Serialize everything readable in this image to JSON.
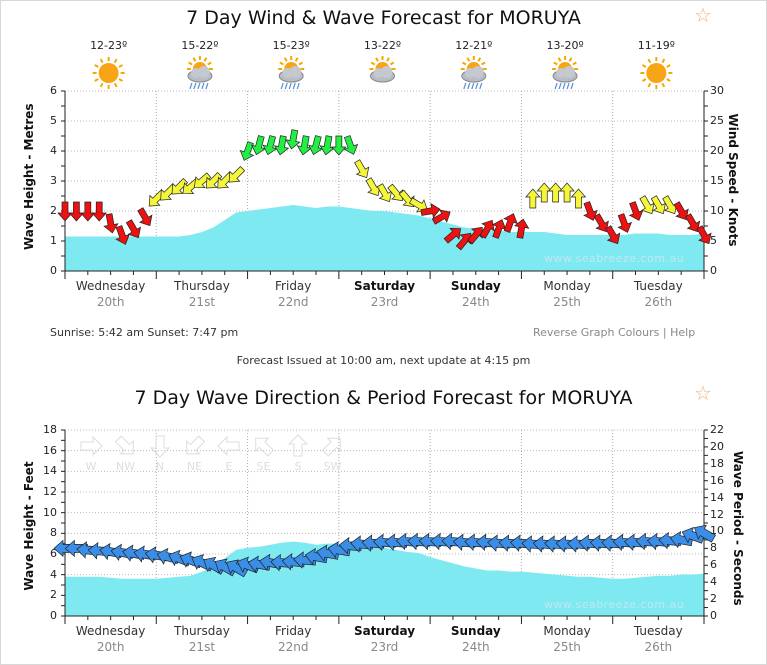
{
  "wind_chart": {
    "title": "7 Day Wind & Wave Forecast for MORUYA",
    "favourite_icon": "star-outline-icon",
    "weather": [
      {
        "temp": "12-23º",
        "icon": "sunny-icon"
      },
      {
        "temp": "15-22º",
        "icon": "storm-icon"
      },
      {
        "temp": "15-23º",
        "icon": "storm-icon"
      },
      {
        "temp": "13-22º",
        "icon": "partly-cloudy-icon"
      },
      {
        "temp": "12-21º",
        "icon": "storm-icon"
      },
      {
        "temp": "13-20º",
        "icon": "storm-icon"
      },
      {
        "temp": "11-19º",
        "icon": "sunny-icon"
      }
    ],
    "sunrise_sunset": "Sunrise: 5:42 am  Sunset: 7:47 pm",
    "reverse_link": "Reverse Graph Colours",
    "separator": "|",
    "help_link": "Help",
    "issued": "Forecast Issued at 10:00 am, next update at 4:15 pm",
    "watermark": "www.seabreeze.com.au"
  },
  "wave_chart": {
    "title": "7 Day Wave Direction & Period Forecast for MORUYA",
    "favourite_icon": "star-outline-icon",
    "watermark": "www.seabreeze.com.au",
    "compass": [
      "W",
      "NW",
      "N",
      "NE",
      "E",
      "SE",
      "S",
      "SW"
    ]
  },
  "days": [
    {
      "day": "Wednesday",
      "date": "20th",
      "bold": false
    },
    {
      "day": "Thursday",
      "date": "21st",
      "bold": false
    },
    {
      "day": "Friday",
      "date": "22nd",
      "bold": false
    },
    {
      "day": "Saturday",
      "date": "23rd",
      "bold": true
    },
    {
      "day": "Sunday",
      "date": "24th",
      "bold": true
    },
    {
      "day": "Monday",
      "date": "25th",
      "bold": false
    },
    {
      "day": "Tuesday",
      "date": "26th",
      "bold": false
    }
  ],
  "chart_data": [
    {
      "type": "area",
      "title": "7 Day Wind & Wave Forecast for MORUYA",
      "ylabel": "Wave Height - Metres",
      "y2label": "Wind Speed - Knots",
      "ylim": [
        0,
        6
      ],
      "y2lim": [
        0,
        30
      ],
      "yticks": [
        "0",
        "1",
        "2",
        "3",
        "4",
        "5",
        "6"
      ],
      "y2ticks": [
        "0",
        "5",
        "10",
        "15",
        "20",
        "25",
        "30"
      ],
      "grid": true,
      "interval_hours": 3,
      "wave_height_m": [
        1.15,
        1.15,
        1.15,
        1.15,
        1.15,
        1.15,
        1.15,
        1.15,
        1.15,
        1.15,
        1.15,
        1.2,
        1.3,
        1.45,
        1.7,
        1.95,
        2.0,
        2.05,
        2.1,
        2.15,
        2.2,
        2.15,
        2.1,
        2.15,
        2.15,
        2.1,
        2.05,
        2.0,
        2.0,
        1.95,
        1.9,
        1.85,
        1.75,
        1.65,
        1.55,
        1.45,
        1.4,
        1.35,
        1.35,
        1.3,
        1.3,
        1.3,
        1.3,
        1.25,
        1.2,
        1.2,
        1.2,
        1.2,
        1.2,
        1.2,
        1.25,
        1.25,
        1.25,
        1.2,
        1.2,
        1.2,
        1.25
      ],
      "wind_speed_kn": [
        10,
        10,
        10,
        10,
        8,
        6,
        7,
        9,
        12,
        13,
        14,
        14,
        15,
        15,
        15,
        16,
        20,
        21,
        21,
        21,
        22,
        21,
        21,
        21,
        21,
        21,
        17,
        14,
        13,
        13,
        12,
        11,
        10,
        9,
        6,
        5,
        6,
        7,
        7,
        8,
        7,
        12,
        13,
        13,
        13,
        12,
        10,
        8,
        6,
        8,
        10,
        11,
        11,
        11,
        10,
        8,
        6
      ],
      "wind_dir_from_deg": [
        0,
        0,
        0,
        0,
        350,
        340,
        330,
        330,
        45,
        45,
        45,
        50,
        50,
        45,
        45,
        45,
        20,
        15,
        15,
        10,
        10,
        10,
        15,
        10,
        0,
        340,
        330,
        330,
        330,
        320,
        320,
        300,
        260,
        240,
        230,
        220,
        220,
        210,
        200,
        200,
        190,
        180,
        180,
        180,
        180,
        180,
        340,
        330,
        330,
        340,
        340,
        330,
        330,
        330,
        330,
        330,
        330
      ],
      "wind_colors": {
        "light": "#ee1111",
        "moderate": "#f5f53a",
        "strong": "#22ee44"
      },
      "wave_color": "#7fe9f2"
    },
    {
      "type": "area",
      "title": "7 Day Wave Direction & Period Forecast for MORUYA",
      "ylabel": "Wave Height - Feet",
      "y2label": "Wave Period - Seconds",
      "ylim": [
        0,
        18
      ],
      "y2lim": [
        0,
        22
      ],
      "yticks": [
        "0",
        "2",
        "4",
        "6",
        "8",
        "10",
        "12",
        "14",
        "16",
        "18"
      ],
      "y2ticks": [
        "0",
        "2",
        "4",
        "6",
        "8",
        "10",
        "12",
        "14",
        "16",
        "18",
        "20",
        "22"
      ],
      "grid": true,
      "interval_hours": 3,
      "wave_height_ft": [
        3.8,
        3.8,
        3.8,
        3.8,
        3.7,
        3.6,
        3.6,
        3.6,
        3.6,
        3.7,
        3.8,
        3.9,
        4.3,
        4.8,
        5.6,
        6.4,
        6.6,
        6.7,
        6.9,
        7.1,
        7.2,
        7.1,
        6.9,
        7.0,
        7.0,
        6.9,
        6.7,
        6.6,
        6.6,
        6.4,
        6.2,
        6.1,
        5.7,
        5.4,
        5.1,
        4.8,
        4.6,
        4.4,
        4.4,
        4.3,
        4.3,
        4.2,
        4.1,
        4.0,
        3.9,
        3.8,
        3.8,
        3.7,
        3.6,
        3.6,
        3.7,
        3.8,
        3.9,
        3.9,
        4.0,
        4.0,
        4.1
      ],
      "wave_period_s": [
        8,
        8,
        7.8,
        7.7,
        7.6,
        7.5,
        7.4,
        7.3,
        7.2,
        7,
        6.8,
        6.6,
        6.3,
        6,
        5.8,
        5.7,
        6,
        6.1,
        6.3,
        6.3,
        6.4,
        6.6,
        7,
        7.4,
        7.8,
        8.3,
        8.5,
        8.6,
        8.7,
        8.7,
        8.8,
        8.8,
        8.8,
        8.8,
        8.8,
        8.7,
        8.7,
        8.7,
        8.6,
        8.6,
        8.6,
        8.5,
        8.5,
        8.5,
        8.5,
        8.5,
        8.6,
        8.6,
        8.6,
        8.7,
        8.7,
        8.8,
        8.8,
        8.9,
        9,
        9.5,
        9.8
      ],
      "wave_dir_from_deg": [
        90,
        90,
        95,
        95,
        100,
        100,
        100,
        100,
        100,
        105,
        110,
        110,
        115,
        120,
        120,
        120,
        110,
        100,
        100,
        95,
        95,
        95,
        100,
        100,
        100,
        95,
        95,
        95,
        95,
        95,
        95,
        95,
        95,
        95,
        95,
        95,
        95,
        95,
        95,
        95,
        95,
        95,
        95,
        95,
        95,
        95,
        95,
        95,
        95,
        95,
        95,
        95,
        95,
        95,
        100,
        110,
        120
      ],
      "arrow_color": "#3b8ee8",
      "wave_color": "#7fe9f2"
    }
  ]
}
